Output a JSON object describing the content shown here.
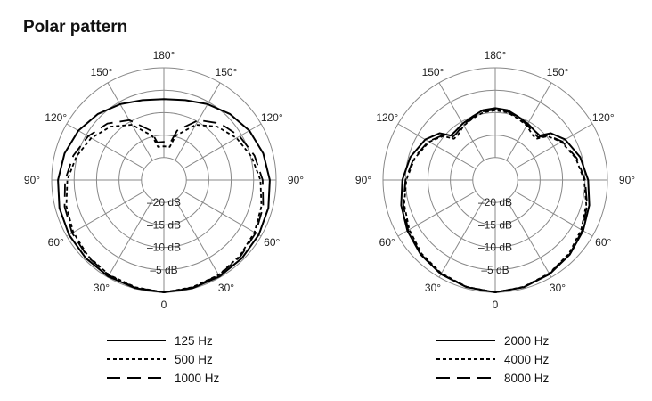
{
  "page_title": "Polar pattern",
  "chart_data": [
    {
      "type": "polar-line",
      "angular_labels": [
        "180°",
        "150°",
        "150°",
        "120°",
        "120°",
        "90°",
        "90°",
        "60°",
        "60°",
        "30°",
        "30°",
        "0"
      ],
      "radial_labels": [
        "–20 dB",
        "–15 dB",
        "–10 dB",
        "–5 dB"
      ],
      "r_range_db": [
        -25,
        0
      ],
      "angle_unit": "degrees",
      "series": [
        {
          "name": "125 Hz",
          "dash": "solid",
          "theta": [
            0,
            15,
            30,
            45,
            60,
            75,
            90,
            105,
            120,
            135,
            150,
            165,
            180
          ],
          "db": [
            0,
            -0.1,
            -0.2,
            -0.4,
            -0.6,
            -0.9,
            -1.4,
            -2.1,
            -3.0,
            -4.2,
            -5.5,
            -6.6,
            -7.0
          ]
        },
        {
          "name": "500 Hz",
          "dash": "dotted",
          "theta": [
            0,
            15,
            30,
            45,
            60,
            75,
            90,
            105,
            120,
            135,
            150,
            165,
            170,
            180
          ],
          "db": [
            0,
            -0.3,
            -0.6,
            -1.1,
            -1.7,
            -2.5,
            -3.5,
            -4.8,
            -6.3,
            -8.2,
            -10.8,
            -14.8,
            -17.5,
            -17.5
          ]
        },
        {
          "name": "1000 Hz",
          "dash": "long-dash",
          "theta": [
            0,
            15,
            30,
            45,
            60,
            75,
            90,
            105,
            120,
            135,
            150,
            165,
            170,
            180
          ],
          "db": [
            0,
            -0.2,
            -0.5,
            -0.9,
            -1.4,
            -2.1,
            -3.0,
            -4.1,
            -5.5,
            -7.2,
            -9.6,
            -13.6,
            -16.5,
            -16.5
          ]
        }
      ]
    },
    {
      "type": "polar-line",
      "angular_labels": [
        "180°",
        "150°",
        "150°",
        "120°",
        "120°",
        "90°",
        "90°",
        "60°",
        "60°",
        "30°",
        "30°",
        "0"
      ],
      "radial_labels": [
        "–20 dB",
        "–15 dB",
        "–10 dB",
        "–5 dB"
      ],
      "r_range_db": [
        -25,
        0
      ],
      "angle_unit": "degrees",
      "series": [
        {
          "name": "2000 Hz",
          "dash": "solid",
          "theta": [
            0,
            15,
            30,
            45,
            60,
            75,
            90,
            105,
            120,
            130,
            135,
            140,
            150,
            160,
            170,
            180
          ],
          "db": [
            0,
            -0.3,
            -0.8,
            -1.5,
            -2.4,
            -3.3,
            -4.3,
            -5.4,
            -7.0,
            -8.8,
            -11.0,
            -11.0,
            -10.5,
            -10.0,
            -9.2,
            -9.0
          ]
        },
        {
          "name": "4000 Hz",
          "dash": "dotted",
          "theta": [
            0,
            15,
            30,
            45,
            60,
            75,
            90,
            105,
            120,
            130,
            135,
            140,
            150,
            160,
            170,
            180
          ],
          "db": [
            0,
            -0.4,
            -1.0,
            -1.8,
            -2.9,
            -4.0,
            -5.2,
            -6.4,
            -8.0,
            -9.8,
            -12.0,
            -12.0,
            -11.0,
            -10.4,
            -9.7,
            -9.5
          ]
        },
        {
          "name": "8000 Hz",
          "dash": "long-dash",
          "theta": [
            0,
            15,
            30,
            45,
            60,
            75,
            90,
            105,
            120,
            130,
            135,
            140,
            150,
            160,
            170,
            180
          ],
          "db": [
            0,
            -0.3,
            -0.9,
            -1.6,
            -2.6,
            -3.8,
            -5.0,
            -6.2,
            -7.8,
            -9.6,
            -11.5,
            -11.5,
            -10.8,
            -10.2,
            -9.5,
            -9.3
          ]
        }
      ]
    }
  ]
}
